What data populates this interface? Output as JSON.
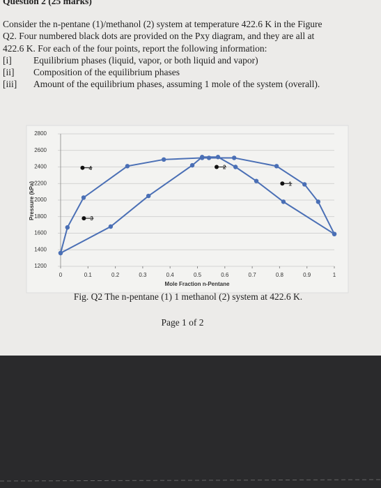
{
  "header": {
    "title": "Question 2 (25 marks)"
  },
  "paragraph": [
    "Consider the n-pentane (1)/methanol (2) system at temperature 422.6 K in the Figure",
    "Q2. Four numbered black dots are provided on the Pxy diagram, and they are all at",
    "422.6 K. For each of the four points, report the following information:"
  ],
  "items": [
    {
      "marker": "[i]",
      "text": "Equilibrium phases (liquid, vapor, or both liquid and vapor)"
    },
    {
      "marker": "[ii]",
      "text": "Composition of the equilibrium phases"
    },
    {
      "marker": "[iii]",
      "text": "Amount of the equilibrium phases, assuming 1 mole of the system (overall)."
    }
  ],
  "chart_data": {
    "type": "line",
    "x_label": "Mole Fraction n-Pentane",
    "y_label": "Pressure (kPa)",
    "xlim": [
      0,
      1
    ],
    "ylim": [
      1200,
      2800
    ],
    "xticks": [
      0,
      0.1,
      0.2,
      0.3,
      0.4,
      0.5,
      0.6,
      0.7,
      0.8,
      0.9,
      1
    ],
    "yticks": [
      1200,
      1400,
      1600,
      1800,
      2000,
      2200,
      2400,
      2600,
      2800
    ],
    "grid": true,
    "series": [
      {
        "color": "#4a6fb5",
        "x": [
          0,
          0.025,
          0.084,
          0.244,
          0.377,
          0.517,
          0.542,
          0.634,
          0.789,
          0.891,
          0.941,
          1
        ],
        "values": [
          1360,
          1670,
          2030,
          2410,
          2490,
          2510,
          2510,
          2510,
          2410,
          2190,
          1980,
          1590
        ]
      },
      {
        "color": "#4a6fb5",
        "x": [
          0,
          0.183,
          0.321,
          0.481,
          0.517,
          0.575,
          0.639,
          0.715,
          0.814,
          1
        ],
        "values": [
          1360,
          1680,
          2050,
          2420,
          2520,
          2520,
          2400,
          2230,
          1980,
          1590
        ]
      }
    ],
    "points": {
      "color": "#111111",
      "labels": [
        "1",
        "2",
        "3",
        "4"
      ],
      "x": [
        0.81,
        0.57,
        0.085,
        0.08
      ],
      "values": [
        2200,
        2400,
        1780,
        2390
      ]
    }
  },
  "caption": "Fig. Q2 The n-pentane (1) 1 methanol (2) system at 422.6 K.",
  "footer": "Page 1 of 2"
}
